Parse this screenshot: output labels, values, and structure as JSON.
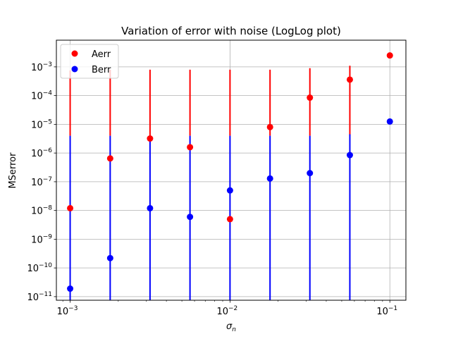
{
  "chart_data": {
    "type": "scatter",
    "title": "Variation of error with noise (LogLog plot)",
    "xlabel": "σ",
    "xlabel_subscript": "n",
    "ylabel": "MSerror",
    "xscale": "log",
    "yscale": "log",
    "xlim": [
      0.00082,
      0.126
    ],
    "ylim": [
      7.5e-12,
      0.0085
    ],
    "grid": true,
    "legend_position": "top-left",
    "x_ticks": [
      {
        "value": 0.001,
        "base": "10",
        "exp": "−3"
      },
      {
        "value": 0.01,
        "base": "10",
        "exp": "−2"
      },
      {
        "value": 0.1,
        "base": "10",
        "exp": "−1"
      }
    ],
    "y_ticks": [
      {
        "value": 1e-11,
        "base": "10",
        "exp": "−11"
      },
      {
        "value": 1e-10,
        "base": "10",
        "exp": "−10"
      },
      {
        "value": 1e-09,
        "base": "10",
        "exp": "−9"
      },
      {
        "value": 1e-08,
        "base": "10",
        "exp": "−8"
      },
      {
        "value": 1e-07,
        "base": "10",
        "exp": "−7"
      },
      {
        "value": 1e-06,
        "base": "10",
        "exp": "−6"
      },
      {
        "value": 1e-05,
        "base": "10",
        "exp": "−5"
      },
      {
        "value": 0.0001,
        "base": "10",
        "exp": "−4"
      },
      {
        "value": 0.001,
        "base": "10",
        "exp": "−3"
      }
    ],
    "x": [
      0.001,
      0.00178,
      0.00316,
      0.00562,
      0.01,
      0.0178,
      0.0316,
      0.0562,
      0.1
    ],
    "series": [
      {
        "name": "Aerr",
        "color": "#ff0000",
        "values": [
          1.2e-08,
          6.5e-07,
          3.2e-06,
          1.6e-06,
          5e-09,
          8e-06,
          8.5e-05,
          0.00036,
          0.0025
        ],
        "error_upper": [
          0.00075,
          0.0008,
          0.0008,
          0.0008,
          0.0008,
          0.0008,
          0.0009,
          0.0011,
          null
        ],
        "error_lower": [
          4e-06,
          4e-06,
          4e-06,
          4e-06,
          4e-06,
          4e-06,
          4e-06,
          4e-06,
          null
        ]
      },
      {
        "name": "Berr",
        "color": "#0000ff",
        "values": [
          1.9e-11,
          2.2e-10,
          1.2e-08,
          6e-09,
          5e-08,
          1.3e-07,
          2e-07,
          8.5e-07,
          1.25e-05
        ],
        "error_upper": [
          4e-06,
          4e-06,
          4e-06,
          4e-06,
          4e-06,
          4e-06,
          4e-06,
          4.5e-06,
          null
        ],
        "error_lower": [
          7.5e-12,
          7.5e-12,
          7.5e-12,
          7.5e-12,
          7.5e-12,
          7.5e-12,
          7.5e-12,
          7.5e-12,
          null
        ]
      }
    ]
  }
}
